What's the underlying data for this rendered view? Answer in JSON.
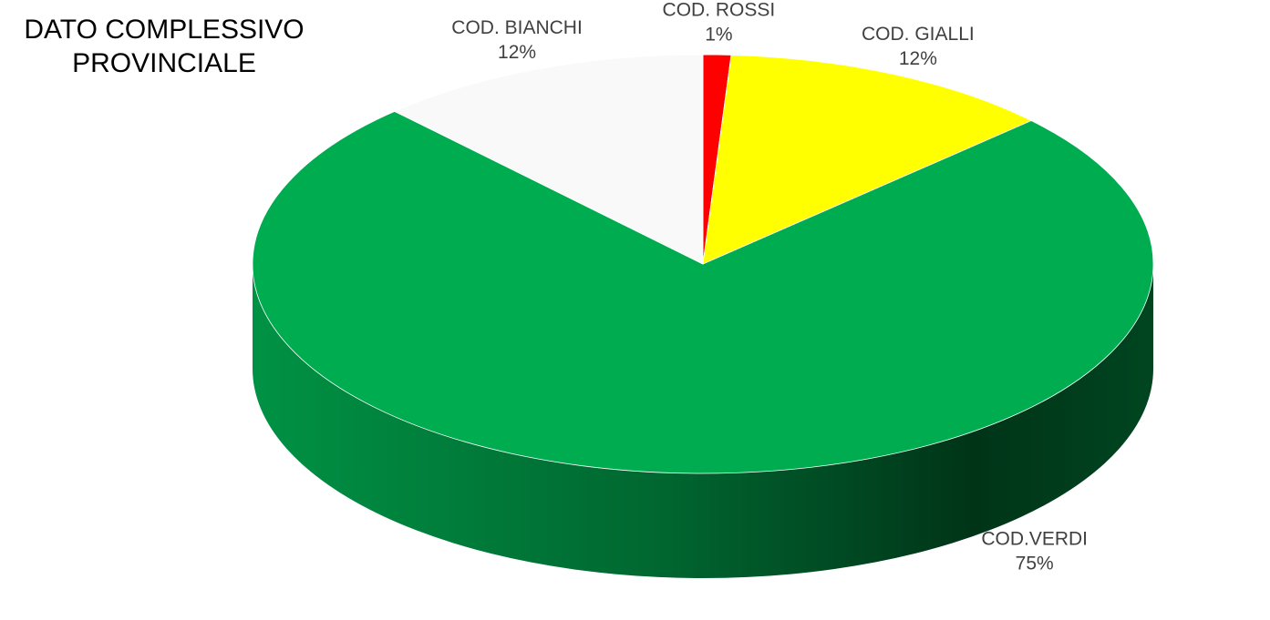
{
  "chart_data": {
    "type": "pie3d",
    "title": "DATO COMPLESSIVO PROVINCIALE",
    "categories": [
      "COD. ROSSI",
      "COD. GIALLI",
      "COD.VERDI",
      "COD. BIANCHI"
    ],
    "values": [
      1,
      12,
      75,
      12
    ],
    "value_labels": [
      "1%",
      "12%",
      "75%",
      "12%"
    ],
    "colors": [
      "#ff0000",
      "#ffff00",
      "#00ac50",
      "#f9f9f9"
    ]
  }
}
